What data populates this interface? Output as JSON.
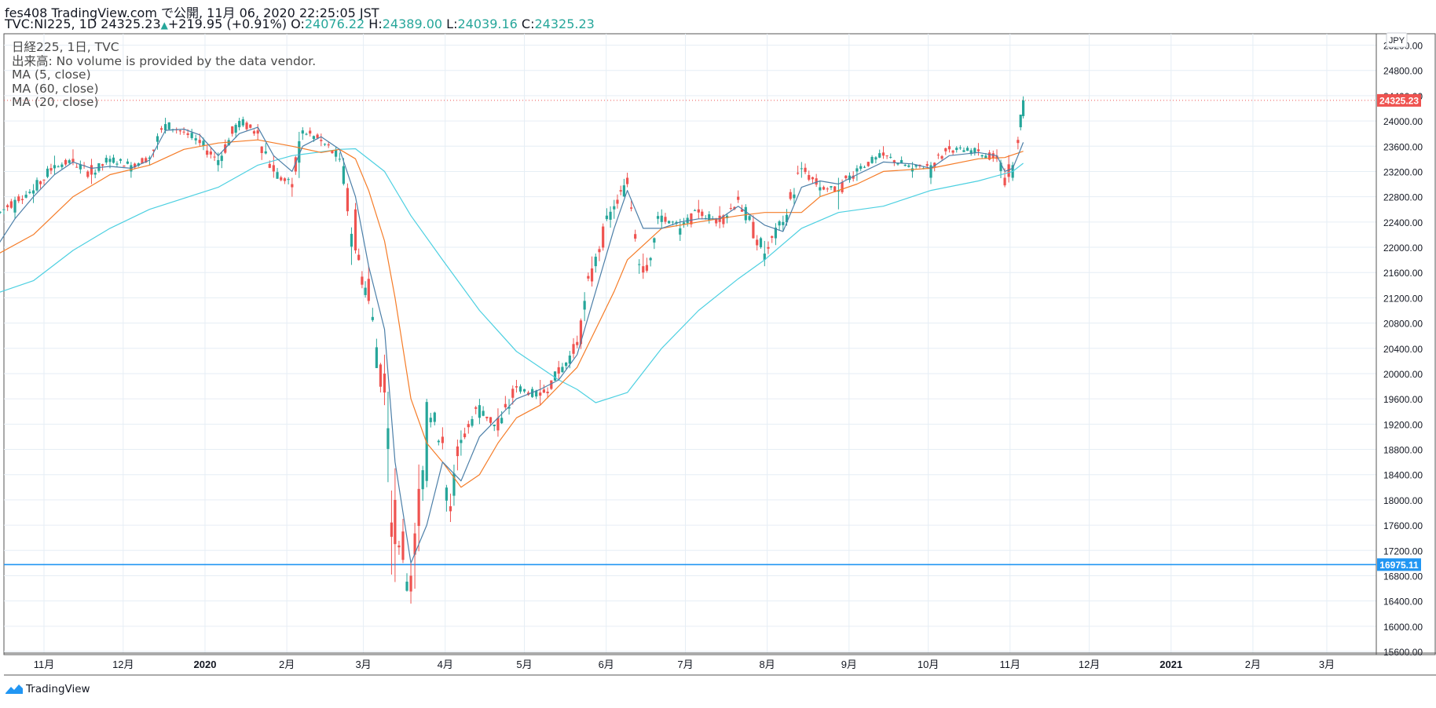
{
  "header": {
    "publish_line": "fes408 TradingView.com で公開, 11月 06, 2020 22:25:05 JST",
    "symbol": "TVC:NI225, 1D",
    "last": "24325.23",
    "change": "+219.95 (+0.91%)",
    "o_label": "O:",
    "o_value": "24076.22",
    "h_label": "H:",
    "h_value": "24389.00",
    "l_label": "L:",
    "l_value": "24039.16",
    "c_label": "C:",
    "c_value": "24325.23"
  },
  "legend": {
    "line1": "日経225, 1日, TVC",
    "line2": "出来高: No volume is provided by the data vendor.",
    "line3": "MA (5, close)",
    "line4": "MA (60, close)",
    "line5": "MA (20, close)"
  },
  "currency_badge": "JPY",
  "logo_text": "TradingView",
  "colors": {
    "up": "#26a69a",
    "down": "#ef5350",
    "ma5": "#4c7fa8",
    "ma20": "#f57c28",
    "ma60": "#4dd0e1",
    "hline": "#2196f3",
    "grid": "#e6eef5"
  },
  "chart_data": {
    "type": "candlestick",
    "title": "日経225, 1日, TVC",
    "y_ticks": [
      15600,
      16000,
      16400,
      16800,
      17200,
      17600,
      18000,
      18400,
      18800,
      19200,
      19600,
      20000,
      20400,
      20800,
      21200,
      21600,
      22000,
      22400,
      22800,
      23200,
      23600,
      24000,
      24400,
      24800,
      25200
    ],
    "y_tick_labels": [
      "15600.00",
      "16000.00",
      "16400.00",
      "16800.00",
      "17200.00",
      "17600.00",
      "18000.00",
      "18400.00",
      "18800.00",
      "19200.00",
      "19600.00",
      "20000.00",
      "20400.00",
      "20800.00",
      "21200.00",
      "21600.00",
      "22000.00",
      "22400.00",
      "22800.00",
      "23200.00",
      "23600.00",
      "24000.00",
      "24400.00",
      "24800.00",
      "25200.00"
    ],
    "x_ticks": [
      {
        "label": "11月",
        "date": "2019-11-01",
        "bold": false
      },
      {
        "label": "12月",
        "date": "2019-12-01",
        "bold": false
      },
      {
        "label": "2020",
        "date": "2020-01-01",
        "bold": true
      },
      {
        "label": "2月",
        "date": "2020-02-01",
        "bold": false
      },
      {
        "label": "3月",
        "date": "2020-03-01",
        "bold": false
      },
      {
        "label": "4月",
        "date": "2020-04-01",
        "bold": false
      },
      {
        "label": "5月",
        "date": "2020-05-01",
        "bold": false
      },
      {
        "label": "6月",
        "date": "2020-06-01",
        "bold": false
      },
      {
        "label": "7月",
        "date": "2020-07-01",
        "bold": false
      },
      {
        "label": "8月",
        "date": "2020-08-01",
        "bold": false
      },
      {
        "label": "9月",
        "date": "2020-09-01",
        "bold": false
      },
      {
        "label": "10月",
        "date": "2020-10-01",
        "bold": false
      },
      {
        "label": "11月",
        "date": "2020-11-01",
        "bold": false
      },
      {
        "label": "12月",
        "date": "2020-12-01",
        "bold": false
      },
      {
        "label": "2021",
        "date": "2021-01-01",
        "bold": true
      },
      {
        "label": "2月",
        "date": "2021-02-01",
        "bold": false
      },
      {
        "label": "3月",
        "date": "2021-03-01",
        "bold": false
      }
    ],
    "last_price": {
      "value": 24325.23,
      "label": "24325.23"
    },
    "horizontal_line": {
      "value": 16975.11,
      "label": "16975.11"
    },
    "ohlc_anchors": [
      [
        "2019-10-14",
        22400,
        22600,
        22300,
        22500
      ],
      [
        "2019-10-21",
        22550,
        22800,
        22450,
        22750
      ],
      [
        "2019-10-28",
        22850,
        23000,
        22700,
        22900
      ],
      [
        "2019-11-05",
        23250,
        23450,
        23150,
        23300
      ],
      [
        "2019-11-12",
        23400,
        23550,
        23300,
        23350
      ],
      [
        "2019-11-19",
        23300,
        23400,
        23000,
        23150
      ],
      [
        "2019-11-26",
        23350,
        23450,
        23250,
        23400
      ],
      [
        "2019-12-04",
        23200,
        23350,
        23100,
        23300
      ],
      [
        "2019-12-11",
        23400,
        23450,
        23300,
        23420
      ],
      [
        "2019-12-17",
        23850,
        24050,
        23800,
        23950
      ],
      [
        "2019-12-24",
        23830,
        23900,
        23780,
        23820
      ],
      [
        "2019-12-30",
        23700,
        23800,
        23600,
        23650
      ],
      [
        "2020-01-06",
        23300,
        23500,
        23200,
        23380
      ],
      [
        "2020-01-14",
        23900,
        24050,
        23850,
        24000
      ],
      [
        "2020-01-21",
        23850,
        23950,
        23700,
        23800
      ],
      [
        "2020-01-27",
        23300,
        23450,
        23100,
        23200
      ],
      [
        "2020-02-03",
        23000,
        23100,
        22800,
        22950
      ],
      [
        "2020-02-07",
        23800,
        23900,
        23700,
        23850
      ],
      [
        "2020-02-14",
        23700,
        23800,
        23600,
        23680
      ],
      [
        "2020-02-21",
        23400,
        23500,
        23350,
        23400
      ],
      [
        "2020-02-27",
        22600,
        22700,
        21900,
        21950
      ],
      [
        "2020-03-03",
        21500,
        21700,
        21100,
        21150
      ],
      [
        "2020-03-09",
        20000,
        20300,
        19500,
        19700
      ],
      [
        "2020-03-13",
        18000,
        18500,
        16700,
        17300
      ],
      [
        "2020-03-16",
        17500,
        17700,
        17000,
        17050
      ],
      [
        "2020-03-19",
        16800,
        17000,
        16358,
        16550
      ],
      [
        "2020-03-25",
        18300,
        19600,
        18200,
        19550
      ],
      [
        "2020-03-31",
        19000,
        19150,
        18800,
        18900
      ],
      [
        "2020-04-03",
        17900,
        18100,
        17650,
        17820
      ],
      [
        "2020-04-07",
        18900,
        19100,
        18700,
        18950
      ],
      [
        "2020-04-14",
        19300,
        19600,
        19200,
        19500
      ],
      [
        "2020-04-21",
        19300,
        19450,
        19000,
        19100
      ],
      [
        "2020-04-28",
        19800,
        19900,
        19700,
        19780
      ],
      [
        "2020-05-07",
        19700,
        19900,
        19500,
        19650
      ],
      [
        "2020-05-14",
        20100,
        20200,
        19900,
        20000
      ],
      [
        "2020-05-21",
        20500,
        20600,
        20400,
        20450
      ],
      [
        "2020-05-28",
        21700,
        21900,
        21600,
        21850
      ],
      [
        "2020-06-04",
        22600,
        22750,
        22450,
        22650
      ],
      [
        "2020-06-09",
        23100,
        23180,
        22950,
        23000
      ],
      [
        "2020-06-15",
        21700,
        21900,
        21500,
        21600
      ],
      [
        "2020-06-22",
        22400,
        22600,
        22300,
        22500
      ],
      [
        "2020-06-29",
        22200,
        22450,
        22100,
        22300
      ],
      [
        "2020-07-06",
        22600,
        22750,
        22450,
        22550
      ],
      [
        "2020-07-14",
        22500,
        22650,
        22300,
        22400
      ],
      [
        "2020-07-21",
        22800,
        22900,
        22700,
        22750
      ],
      [
        "2020-07-31",
        21800,
        22100,
        21700,
        21900
      ],
      [
        "2020-08-07",
        22350,
        22500,
        22250,
        22400
      ],
      [
        "2020-08-14",
        23250,
        23350,
        23100,
        23250
      ],
      [
        "2020-08-21",
        22900,
        23050,
        22800,
        22950
      ],
      [
        "2020-08-28",
        22880,
        23100,
        22600,
        22900
      ],
      [
        "2020-09-04",
        23200,
        23300,
        23050,
        23250
      ],
      [
        "2020-09-14",
        23500,
        23600,
        23400,
        23450
      ],
      [
        "2020-09-25",
        23200,
        23350,
        23100,
        23250
      ],
      [
        "2020-10-02",
        23100,
        23350,
        23000,
        23300
      ],
      [
        "2020-10-09",
        23600,
        23700,
        23500,
        23550
      ],
      [
        "2020-10-20",
        23550,
        23650,
        23450,
        23520
      ],
      [
        "2020-10-27",
        23450,
        23550,
        23350,
        23400
      ],
      [
        "2020-10-30",
        23100,
        23250,
        22950,
        22980
      ],
      [
        "2020-11-02",
        23100,
        23350,
        23050,
        23300
      ],
      [
        "2020-11-04",
        23700,
        23750,
        23550,
        23650
      ],
      [
        "2020-11-05",
        23900,
        24100,
        23850,
        24100
      ],
      [
        "2020-11-06",
        24076.22,
        24389,
        24039.16,
        24325.23
      ]
    ],
    "ma5_anchors": [
      [
        "2019-10-14",
        22000
      ],
      [
        "2019-10-21",
        22450
      ],
      [
        "2019-10-28",
        22800
      ],
      [
        "2019-11-05",
        23150
      ],
      [
        "2019-11-12",
        23350
      ],
      [
        "2019-11-19",
        23250
      ],
      [
        "2019-11-26",
        23280
      ],
      [
        "2019-12-04",
        23250
      ],
      [
        "2019-12-11",
        23380
      ],
      [
        "2019-12-17",
        23850
      ],
      [
        "2019-12-24",
        23870
      ],
      [
        "2019-12-30",
        23780
      ],
      [
        "2020-01-06",
        23450
      ],
      [
        "2020-01-14",
        23800
      ],
      [
        "2020-01-21",
        23900
      ],
      [
        "2020-01-27",
        23450
      ],
      [
        "2020-02-03",
        23200
      ],
      [
        "2020-02-07",
        23600
      ],
      [
        "2020-02-14",
        23750
      ],
      [
        "2020-02-21",
        23550
      ],
      [
        "2020-02-27",
        22800
      ],
      [
        "2020-03-03",
        21700
      ],
      [
        "2020-03-09",
        20700
      ],
      [
        "2020-03-13",
        18600
      ],
      [
        "2020-03-19",
        17000
      ],
      [
        "2020-03-25",
        17600
      ],
      [
        "2020-03-31",
        18600
      ],
      [
        "2020-04-07",
        18300
      ],
      [
        "2020-04-14",
        19000
      ],
      [
        "2020-04-21",
        19300
      ],
      [
        "2020-04-28",
        19600
      ],
      [
        "2020-05-07",
        19750
      ],
      [
        "2020-05-14",
        19900
      ],
      [
        "2020-05-21",
        20300
      ],
      [
        "2020-05-28",
        21300
      ],
      [
        "2020-06-04",
        22300
      ],
      [
        "2020-06-09",
        22900
      ],
      [
        "2020-06-15",
        22300
      ],
      [
        "2020-06-22",
        22300
      ],
      [
        "2020-06-29",
        22400
      ],
      [
        "2020-07-06",
        22450
      ],
      [
        "2020-07-14",
        22450
      ],
      [
        "2020-07-21",
        22650
      ],
      [
        "2020-07-31",
        22350
      ],
      [
        "2020-08-07",
        22250
      ],
      [
        "2020-08-14",
        22950
      ],
      [
        "2020-08-21",
        23050
      ],
      [
        "2020-08-28",
        23000
      ],
      [
        "2020-09-04",
        23150
      ],
      [
        "2020-09-14",
        23350
      ],
      [
        "2020-09-25",
        23320
      ],
      [
        "2020-10-02",
        23250
      ],
      [
        "2020-10-09",
        23450
      ],
      [
        "2020-10-20",
        23500
      ],
      [
        "2020-10-27",
        23450
      ],
      [
        "2020-10-30",
        23200
      ],
      [
        "2020-11-02",
        23250
      ],
      [
        "2020-11-04",
        23450
      ],
      [
        "2020-11-06",
        23660
      ]
    ],
    "ma20_anchors": [
      [
        "2019-10-14",
        21880
      ],
      [
        "2019-10-28",
        22200
      ],
      [
        "2019-11-12",
        22800
      ],
      [
        "2019-11-26",
        23150
      ],
      [
        "2019-12-11",
        23300
      ],
      [
        "2019-12-24",
        23550
      ],
      [
        "2020-01-06",
        23650
      ],
      [
        "2020-01-21",
        23700
      ],
      [
        "2020-02-03",
        23600
      ],
      [
        "2020-02-14",
        23500
      ],
      [
        "2020-02-21",
        23550
      ],
      [
        "2020-02-27",
        23400
      ],
      [
        "2020-03-03",
        22900
      ],
      [
        "2020-03-09",
        22100
      ],
      [
        "2020-03-13",
        21200
      ],
      [
        "2020-03-19",
        19600
      ],
      [
        "2020-03-25",
        18900
      ],
      [
        "2020-03-31",
        18600
      ],
      [
        "2020-04-07",
        18200
      ],
      [
        "2020-04-14",
        18400
      ],
      [
        "2020-04-21",
        18900
      ],
      [
        "2020-04-28",
        19300
      ],
      [
        "2020-05-07",
        19500
      ],
      [
        "2020-05-14",
        19800
      ],
      [
        "2020-05-21",
        20100
      ],
      [
        "2020-05-28",
        20700
      ],
      [
        "2020-06-04",
        21300
      ],
      [
        "2020-06-09",
        21800
      ],
      [
        "2020-06-22",
        22300
      ],
      [
        "2020-07-06",
        22400
      ],
      [
        "2020-07-21",
        22500
      ],
      [
        "2020-07-31",
        22550
      ],
      [
        "2020-08-14",
        22550
      ],
      [
        "2020-08-21",
        22800
      ],
      [
        "2020-09-04",
        23000
      ],
      [
        "2020-09-14",
        23200
      ],
      [
        "2020-10-02",
        23250
      ],
      [
        "2020-10-20",
        23400
      ],
      [
        "2020-10-30",
        23420
      ],
      [
        "2020-11-06",
        23520
      ]
    ],
    "ma60_anchors": [
      [
        "2019-10-14",
        21270
      ],
      [
        "2019-10-28",
        21470
      ],
      [
        "2019-11-12",
        21950
      ],
      [
        "2019-11-26",
        22300
      ],
      [
        "2019-12-11",
        22600
      ],
      [
        "2020-01-06",
        22950
      ],
      [
        "2020-01-21",
        23300
      ],
      [
        "2020-02-03",
        23450
      ],
      [
        "2020-02-21",
        23550
      ],
      [
        "2020-02-27",
        23560
      ],
      [
        "2020-03-09",
        23200
      ],
      [
        "2020-03-19",
        22500
      ],
      [
        "2020-03-31",
        21800
      ],
      [
        "2020-04-14",
        21000
      ],
      [
        "2020-04-28",
        20350
      ],
      [
        "2020-05-14",
        19900
      ],
      [
        "2020-05-21",
        19750
      ],
      [
        "2020-05-28",
        19540
      ],
      [
        "2020-06-09",
        19700
      ],
      [
        "2020-06-22",
        20400
      ],
      [
        "2020-07-06",
        21000
      ],
      [
        "2020-07-21",
        21500
      ],
      [
        "2020-07-31",
        21800
      ],
      [
        "2020-08-14",
        22300
      ],
      [
        "2020-08-28",
        22550
      ],
      [
        "2020-09-14",
        22650
      ],
      [
        "2020-10-02",
        22900
      ],
      [
        "2020-10-20",
        23050
      ],
      [
        "2020-11-02",
        23200
      ],
      [
        "2020-11-06",
        23330
      ]
    ]
  }
}
